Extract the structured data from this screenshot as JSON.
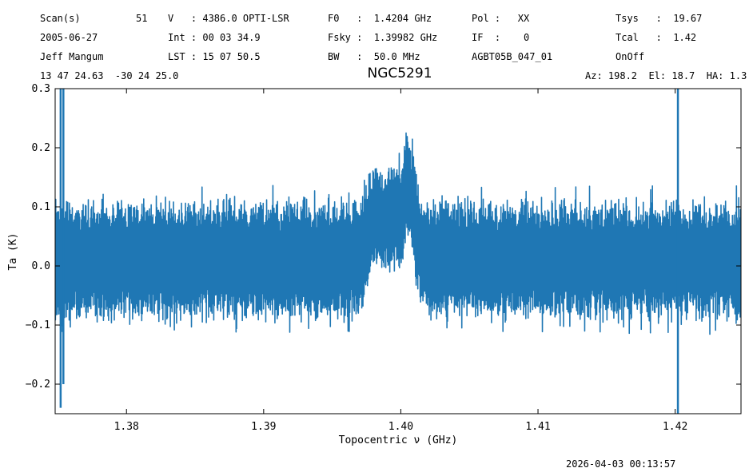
{
  "header": {
    "col1": [
      "Scan(s)",
      "2005-06-27",
      "Jeff Mangum",
      "13 47 24.63  -30 24 25.0"
    ],
    "scan_number": "51",
    "col2": [
      "V   : 4386.0 OPTI-LSR",
      "Int : 00 03 34.9",
      "LST : 15 07 50.5"
    ],
    "col3": [
      "F0   :  1.4204 GHz",
      "Fsky :  1.39982 GHz",
      "BW   :  50.0 MHz"
    ],
    "col4": [
      "Pol :   XX",
      "IF  :    0",
      "AGBT05B_047_01"
    ],
    "col5": [
      "Tsys   :  19.67",
      "Tcal   :  1.42",
      "OnOff"
    ],
    "azel": "Az: 198.2  El: 18.7  HA: 1.3"
  },
  "timestamp": "2026-04-03 00:13:57",
  "chart_data": {
    "type": "line",
    "title": "NGC5291",
    "xlabel": "Topocentric ν (GHz)",
    "ylabel": "Ta (K)",
    "xlim": [
      1.3748,
      1.4248
    ],
    "ylim": [
      -0.25,
      0.3
    ],
    "xticks": [
      1.38,
      1.39,
      1.4,
      1.41,
      1.42
    ],
    "xtick_labels": [
      "1.38",
      "1.39",
      "1.40",
      "1.41",
      "1.42"
    ],
    "yticks": [
      -0.2,
      -0.1,
      0.0,
      0.1,
      0.2,
      0.3
    ],
    "ytick_labels": [
      "−0.2",
      "−0.1",
      "0.0",
      "0.1",
      "0.2",
      "0.3"
    ],
    "grid": false,
    "color": "#1f77b4",
    "envelope_points": {
      "x": [
        1.3748,
        1.376,
        1.38,
        1.39,
        1.397,
        1.398,
        1.399,
        1.4,
        1.4005,
        1.401,
        1.4015,
        1.403,
        1.41,
        1.42,
        1.4248
      ],
      "ymax": [
        0.13,
        0.12,
        0.12,
        0.12,
        0.12,
        0.18,
        0.17,
        0.18,
        0.25,
        0.2,
        0.12,
        0.12,
        0.12,
        0.12,
        0.12
      ],
      "ymin": [
        -0.12,
        -0.1,
        -0.1,
        -0.1,
        -0.1,
        -0.02,
        -0.01,
        -0.02,
        0.05,
        -0.02,
        -0.09,
        -0.1,
        -0.1,
        -0.1,
        -0.1
      ]
    },
    "spikes": [
      {
        "x": 1.3752,
        "ymin": -0.24,
        "ymax": 0.3
      },
      {
        "x": 1.3754,
        "ymin": -0.2,
        "ymax": 0.3
      },
      {
        "x": 1.4202,
        "ymin": -0.25,
        "ymax": 0.3
      }
    ]
  }
}
